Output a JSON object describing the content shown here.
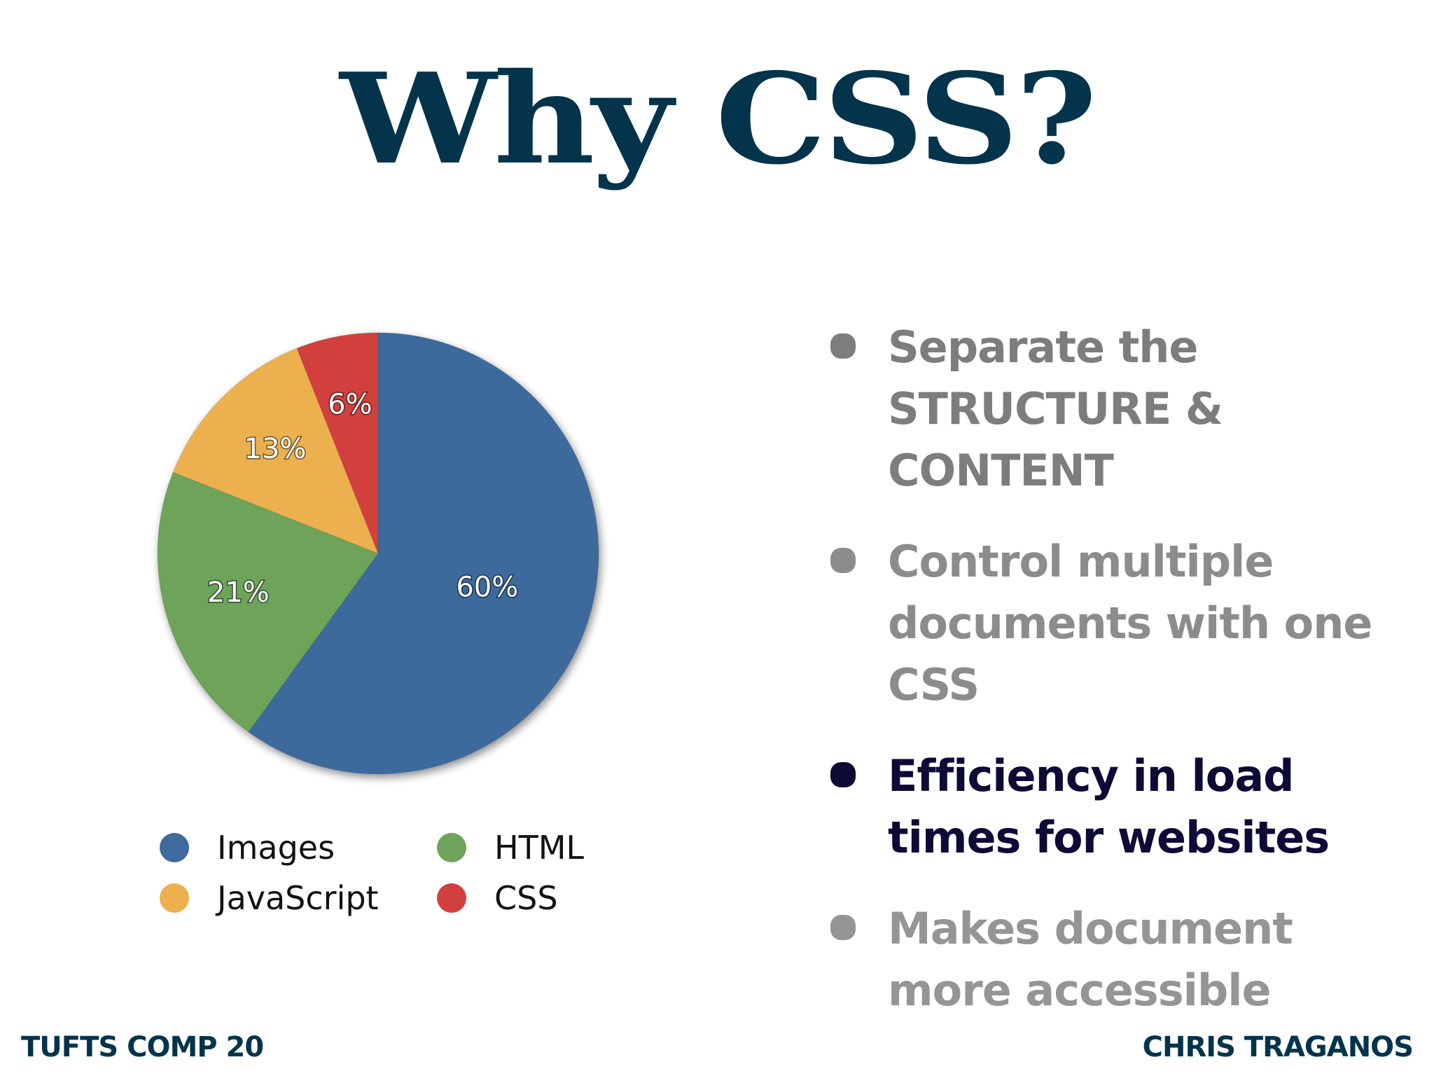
{
  "slide": {
    "title": "Why CSS?"
  },
  "chart_data": {
    "type": "pie",
    "slices": [
      {
        "label": "Images",
        "value": 60,
        "display": "60%",
        "color": "#3e6a9d"
      },
      {
        "label": "HTML",
        "value": 21,
        "display": "21%",
        "color": "#6ea35a"
      },
      {
        "label": "JavaScript",
        "value": 13,
        "display": "13%",
        "color": "#ecb04f"
      },
      {
        "label": "CSS",
        "value": 6,
        "display": "6%",
        "color": "#d1403d"
      }
    ],
    "legend": [
      {
        "label": "Images",
        "color": "#3e6a9d"
      },
      {
        "label": "HTML",
        "color": "#6ea35a"
      },
      {
        "label": "JavaScript",
        "color": "#ecb04f"
      },
      {
        "label": "CSS",
        "color": "#d1403d"
      }
    ],
    "legend_placement": "bottom"
  },
  "bullets": [
    {
      "text": "Separate the STRUCTURE & CONTENT",
      "state": "dimmed",
      "color": "#7d7d7d"
    },
    {
      "text": "Control multiple documents with one CSS",
      "state": "dimmed",
      "color": "#8c8c8c"
    },
    {
      "text": "Efficiency in load times for websites",
      "state": "active",
      "color": "#0d0a36"
    },
    {
      "text": "Makes document more accessible",
      "state": "dimmed",
      "color": "#959595"
    }
  ],
  "footer": {
    "left": "TUFTS COMP 20",
    "right": "CHRIS TRAGANOS"
  }
}
